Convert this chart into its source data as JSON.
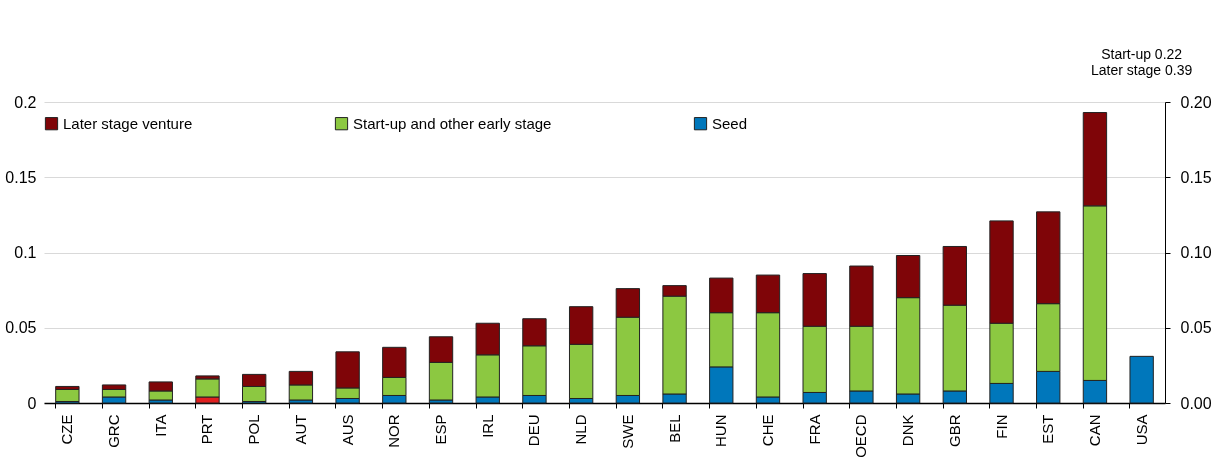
{
  "chart_data": {
    "type": "bar",
    "stacked": true,
    "categories": [
      "CZE",
      "GRC",
      "ITA",
      "PRT",
      "POL",
      "AUT",
      "AUS",
      "NOR",
      "ESP",
      "IRL",
      "DEU",
      "NLD",
      "SWE",
      "BEL",
      "HUN",
      "CHE",
      "FRA",
      "OECD",
      "DNK",
      "GBR",
      "FIN",
      "EST",
      "CAN",
      "USA"
    ],
    "series": [
      {
        "name": "Seed",
        "color": "#0077bb",
        "colors": [
          "#0077bb",
          "#0077bb",
          "#0077bb",
          "#e02020",
          "#0077bb",
          "#0077bb",
          "#0077bb",
          "#0077bb",
          "#0077bb",
          "#0077bb",
          "#0077bb",
          "#0077bb",
          "#0077bb",
          "#0077bb",
          "#0077bb",
          "#0077bb",
          "#0077bb",
          "#0077bb",
          "#0077bb",
          "#0077bb",
          "#0077bb",
          "#0077bb",
          "#0077bb",
          "#0077bb"
        ],
        "values": [
          0.001,
          0.004,
          0.002,
          0.004,
          0.001,
          0.002,
          0.003,
          0.005,
          0.002,
          0.004,
          0.005,
          0.003,
          0.005,
          0.006,
          0.024,
          0.004,
          0.007,
          0.008,
          0.006,
          0.008,
          0.013,
          0.021,
          0.015,
          0.031
        ]
      },
      {
        "name": "Start-up and other early stage",
        "color": "#8cc841",
        "values": [
          0.008,
          0.005,
          0.006,
          0.012,
          0.01,
          0.01,
          0.007,
          0.012,
          0.025,
          0.028,
          0.033,
          0.036,
          0.052,
          0.065,
          0.036,
          0.056,
          0.044,
          0.043,
          0.064,
          0.057,
          0.04,
          0.045,
          0.116,
          null
        ]
      },
      {
        "name": "Later stage venture",
        "color": "#7f0508",
        "values": [
          0.002,
          0.003,
          0.006,
          0.002,
          0.008,
          0.009,
          0.024,
          0.02,
          0.017,
          0.021,
          0.018,
          0.025,
          0.019,
          0.007,
          0.023,
          0.025,
          0.035,
          0.04,
          0.028,
          0.039,
          0.068,
          0.061,
          0.062,
          null
        ]
      }
    ],
    "ylim": [
      0,
      0.2
    ],
    "yticks": [
      0,
      0.05,
      0.1,
      0.15,
      0.2
    ],
    "y2lim": [
      0,
      0.2
    ],
    "y2ticks": [
      {
        "value": 0,
        "label": "0.00"
      },
      {
        "value": 0.05,
        "label": "0.05"
      },
      {
        "value": 0.1,
        "label": "0.10"
      },
      {
        "value": 0.15,
        "label": "0.15"
      },
      {
        "value": 0.2,
        "label": "0.20"
      }
    ],
    "annotations": [
      "Start-up 0.22",
      "Later stage 0.39"
    ],
    "grid": "y",
    "legend": "top"
  }
}
